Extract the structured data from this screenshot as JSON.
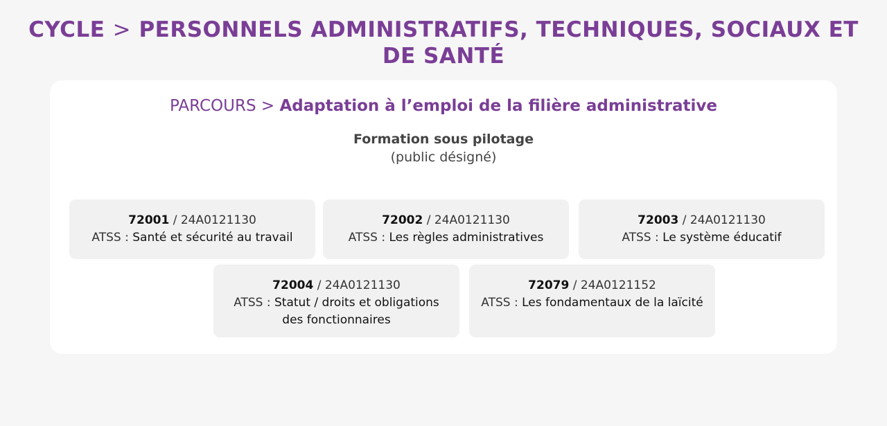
{
  "header": {
    "cycle_label": "CYCLE",
    "separator": ">",
    "cycle_name": "PERSONNELS ADMINISTRATIFS, TECHNIQUES, SOCIAUX ET DE SANTÉ"
  },
  "parcours": {
    "label": "PARCOURS",
    "separator": ">",
    "name": "Adaptation à l’emploi de la filière administrative"
  },
  "formation": {
    "type": "Formation sous pilotage",
    "public": "(public désigné)"
  },
  "modules": [
    {
      "code": "72001",
      "separator": "/",
      "ref": "24A0121130",
      "category": "ATSS :",
      "title": "Santé et sécurité au travail"
    },
    {
      "code": "72002",
      "separator": "/",
      "ref": "24A0121130",
      "category": "ATSS :",
      "title": "Les règles administratives"
    },
    {
      "code": "72003",
      "separator": "/",
      "ref": "24A0121130",
      "category": "ATSS :",
      "title": "Le système éducatif"
    },
    {
      "code": "72004",
      "separator": "/",
      "ref": "24A0121130",
      "category": "ATSS :",
      "title": "Statut / droits et obligations des fonctionnaires"
    },
    {
      "code": "72079",
      "separator": "/",
      "ref": "24A0121152",
      "category": "ATSS :",
      "title": "Les fondamentaux de la laïcité"
    }
  ],
  "colors": {
    "accent": "#7a3e96",
    "background": "#f6f6f6",
    "card": "#ffffff",
    "module_background": "#f1f1f1"
  }
}
